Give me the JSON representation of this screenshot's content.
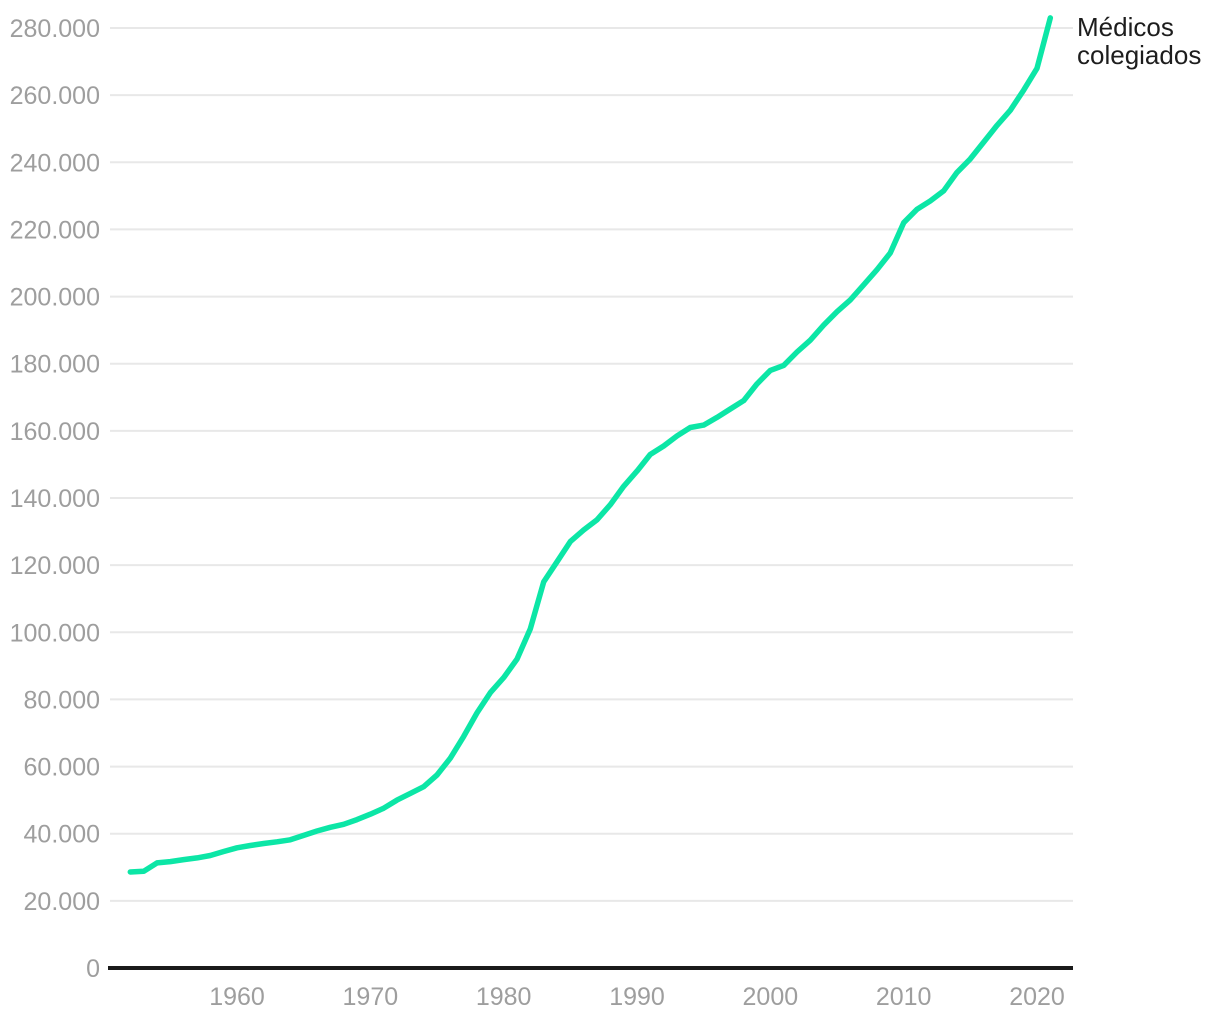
{
  "legend": {
    "label": "Médicos colegiados"
  },
  "colors": {
    "line": "#0ce6a6",
    "gridline": "#e8e8e8",
    "axis": "#1a1a1a",
    "tick_label": "#9e9e9e",
    "legend_text": "#1d1d1d",
    "background": "#ffffff"
  },
  "chart_data": {
    "type": "line",
    "title": "",
    "xlabel": "",
    "ylabel": "",
    "grid": "horizontal",
    "legend_position": "right-of-line-end",
    "xlim": [
      1952,
      2022.5
    ],
    "ylim": [
      0,
      280000
    ],
    "x_ticks": [
      1960,
      1970,
      1980,
      1990,
      2000,
      2010,
      2020
    ],
    "x_tick_labels": [
      "1960",
      "1970",
      "1980",
      "1990",
      "2000",
      "2010",
      "2020"
    ],
    "y_ticks": [
      0,
      20000,
      40000,
      60000,
      80000,
      100000,
      120000,
      140000,
      160000,
      180000,
      200000,
      220000,
      240000,
      260000,
      280000
    ],
    "y_tick_labels": [
      "0",
      "20.000",
      "40.000",
      "60.000",
      "80.000",
      "100.000",
      "120.000",
      "140.000",
      "160.000",
      "180.000",
      "200.000",
      "220.000",
      "240.000",
      "260.000",
      "280.000"
    ],
    "series": [
      {
        "name": "Médicos colegiados",
        "x": [
          1952,
          1953,
          1954,
          1955,
          1956,
          1957,
          1958,
          1959,
          1960,
          1961,
          1962,
          1963,
          1964,
          1965,
          1966,
          1967,
          1968,
          1969,
          1970,
          1971,
          1972,
          1973,
          1974,
          1975,
          1976,
          1977,
          1978,
          1979,
          1980,
          1981,
          1982,
          1983,
          1984,
          1985,
          1986,
          1987,
          1988,
          1989,
          1990,
          1991,
          1992,
          1993,
          1994,
          1995,
          1996,
          1997,
          1998,
          1999,
          2000,
          2001,
          2002,
          2003,
          2004,
          2005,
          2006,
          2007,
          2008,
          2009,
          2010,
          2011,
          2012,
          2013,
          2014,
          2015,
          2016,
          2017,
          2018,
          2019,
          2020,
          2021
        ],
        "values": [
          28600,
          28800,
          31300,
          31700,
          32300,
          32800,
          33500,
          34700,
          35800,
          36500,
          37100,
          37600,
          38200,
          39500,
          40800,
          41900,
          42800,
          44200,
          45800,
          47600,
          50000,
          52000,
          54000,
          57500,
          62500,
          69000,
          76000,
          82000,
          86500,
          92000,
          101000,
          115000,
          121000,
          127000,
          130500,
          133500,
          138000,
          143500,
          148000,
          153000,
          155500,
          158500,
          161000,
          161700,
          164000,
          166500,
          169000,
          174000,
          178000,
          179500,
          183500,
          187000,
          191500,
          195500,
          199000,
          203500,
          208000,
          213000,
          222000,
          226000,
          228500,
          231500,
          237000,
          241000,
          246000,
          251000,
          255500,
          261500,
          268000,
          283000
        ]
      }
    ]
  }
}
